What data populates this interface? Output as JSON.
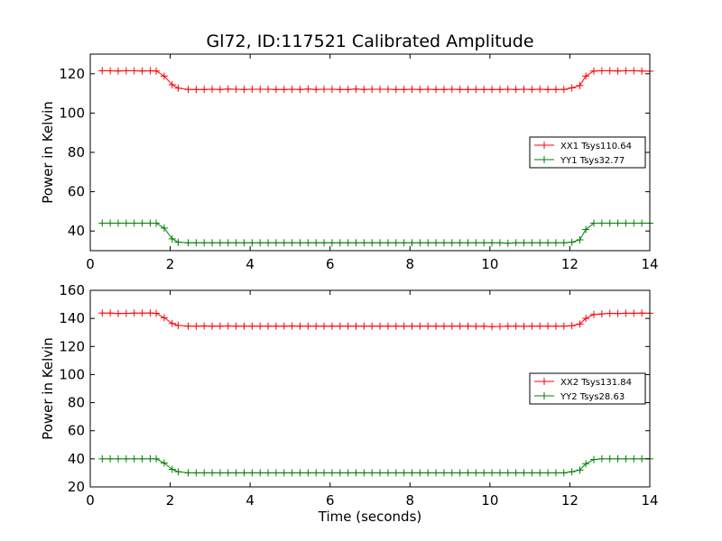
{
  "figure": {
    "title": "Gl72, ID:117521 Calibrated Amplitude"
  },
  "colors": {
    "red": "#ff0000",
    "green": "#008000",
    "axis": "#000000"
  },
  "chart_data": [
    {
      "type": "line",
      "title": "Gl72, ID:117521 Calibrated Amplitude",
      "xlabel": "",
      "ylabel": "Power in Kelvin",
      "xlim": [
        0,
        14
      ],
      "ylim": [
        30,
        130
      ],
      "xticks": [
        0,
        2,
        4,
        6,
        8,
        10,
        12,
        14
      ],
      "yticks": [
        40,
        60,
        80,
        100,
        120
      ],
      "grid": false,
      "legend_position": "right",
      "series": [
        {
          "name": "XX1 Tsys110.64",
          "color": "#ff0000",
          "x": [
            0.3,
            0.5,
            0.7,
            0.9,
            1.1,
            1.3,
            1.5,
            1.65,
            1.85,
            2.05,
            2.2,
            2.45,
            2.65,
            2.85,
            3.05,
            3.25,
            3.45,
            3.65,
            3.85,
            4.05,
            4.25,
            4.45,
            4.65,
            4.85,
            5.05,
            5.25,
            5.45,
            5.65,
            5.85,
            6.05,
            6.25,
            6.45,
            6.65,
            6.85,
            7.05,
            7.25,
            7.45,
            7.65,
            7.85,
            8.05,
            8.25,
            8.45,
            8.65,
            8.85,
            9.05,
            9.25,
            9.45,
            9.65,
            9.85,
            10.05,
            10.25,
            10.45,
            10.65,
            10.85,
            11.05,
            11.25,
            11.45,
            11.65,
            11.85,
            12.05,
            12.25,
            12.4,
            12.6,
            12.8,
            13.0,
            13.2,
            13.4,
            13.6,
            13.8,
            14.0
          ],
          "y": [
            121.5,
            121.5,
            121.4,
            121.5,
            121.5,
            121.4,
            121.5,
            121.4,
            118.8,
            114.4,
            112.7,
            112.0,
            112.0,
            112.0,
            112.1,
            112.0,
            112.2,
            112.1,
            112.0,
            112.1,
            112.1,
            112.1,
            112.0,
            112.0,
            112.1,
            112.0,
            112.2,
            112.0,
            112.1,
            112.1,
            112.0,
            112.0,
            112.2,
            112.0,
            112.1,
            112.1,
            112.1,
            112.0,
            112.0,
            112.1,
            112.0,
            112.1,
            112.0,
            112.0,
            112.1,
            112.0,
            112.0,
            112.0,
            112.0,
            112.0,
            112.0,
            112.1,
            112.0,
            112.1,
            112.0,
            112.1,
            112.0,
            112.0,
            112.0,
            112.8,
            114.0,
            118.8,
            121.4,
            121.5,
            121.5,
            121.4,
            121.5,
            121.5,
            121.4,
            121.3
          ]
        },
        {
          "name": "YY1 Tsys32.77",
          "color": "#008000",
          "x": [
            0.3,
            0.5,
            0.7,
            0.9,
            1.1,
            1.3,
            1.5,
            1.65,
            1.85,
            2.05,
            2.2,
            2.45,
            2.65,
            2.85,
            3.05,
            3.25,
            3.45,
            3.65,
            3.85,
            4.05,
            4.25,
            4.45,
            4.65,
            4.85,
            5.05,
            5.25,
            5.45,
            5.65,
            5.85,
            6.05,
            6.25,
            6.45,
            6.65,
            6.85,
            7.05,
            7.25,
            7.45,
            7.65,
            7.85,
            8.05,
            8.25,
            8.45,
            8.65,
            8.85,
            9.05,
            9.25,
            9.45,
            9.65,
            9.85,
            10.05,
            10.25,
            10.45,
            10.65,
            10.85,
            11.05,
            11.25,
            11.45,
            11.65,
            11.85,
            12.05,
            12.25,
            12.4,
            12.6,
            12.8,
            13.0,
            13.2,
            13.4,
            13.6,
            13.8,
            14.0
          ],
          "y": [
            44.0,
            44.0,
            44.0,
            44.0,
            44.0,
            44.0,
            44.0,
            44.0,
            41.5,
            36.0,
            34.3,
            34.0,
            34.0,
            34.0,
            34.0,
            34.0,
            34.0,
            34.0,
            34.0,
            34.0,
            34.0,
            34.0,
            34.0,
            34.0,
            34.0,
            34.0,
            34.0,
            34.0,
            34.0,
            34.0,
            34.0,
            34.0,
            34.0,
            34.0,
            34.0,
            34.0,
            34.0,
            34.0,
            34.0,
            34.0,
            34.0,
            34.0,
            34.0,
            34.0,
            34.0,
            34.0,
            34.0,
            34.0,
            34.0,
            34.0,
            34.0,
            33.8,
            34.0,
            34.0,
            34.0,
            34.0,
            34.0,
            34.0,
            34.0,
            34.3,
            35.5,
            40.8,
            44.0,
            44.0,
            44.0,
            44.0,
            44.0,
            44.0,
            44.0,
            44.0
          ]
        }
      ]
    },
    {
      "type": "line",
      "title": "",
      "xlabel": "Time (seconds)",
      "ylabel": "Power in Kelvin",
      "xlim": [
        0,
        14
      ],
      "ylim": [
        20,
        160
      ],
      "xticks": [
        0,
        2,
        4,
        6,
        8,
        10,
        12,
        14
      ],
      "yticks": [
        20,
        40,
        60,
        80,
        100,
        120,
        140,
        160
      ],
      "grid": false,
      "legend_position": "right",
      "series": [
        {
          "name": "XX2 Tsys131.84",
          "color": "#ff0000",
          "x": [
            0.3,
            0.5,
            0.7,
            0.9,
            1.1,
            1.3,
            1.5,
            1.65,
            1.85,
            2.05,
            2.2,
            2.45,
            2.65,
            2.85,
            3.05,
            3.25,
            3.45,
            3.65,
            3.85,
            4.05,
            4.25,
            4.45,
            4.65,
            4.85,
            5.05,
            5.25,
            5.45,
            5.65,
            5.85,
            6.05,
            6.25,
            6.45,
            6.65,
            6.85,
            7.05,
            7.25,
            7.45,
            7.65,
            7.85,
            8.05,
            8.25,
            8.45,
            8.65,
            8.85,
            9.05,
            9.25,
            9.45,
            9.65,
            9.85,
            10.05,
            10.25,
            10.45,
            10.65,
            10.85,
            11.05,
            11.25,
            11.45,
            11.65,
            11.85,
            12.05,
            12.25,
            12.4,
            12.6,
            12.8,
            13.0,
            13.2,
            13.4,
            13.6,
            13.8,
            14.0
          ],
          "y": [
            143.8,
            143.8,
            143.5,
            143.6,
            143.8,
            143.8,
            143.9,
            143.6,
            140.5,
            136.4,
            135.0,
            134.5,
            134.5,
            134.6,
            134.5,
            134.5,
            134.6,
            134.5,
            134.5,
            134.5,
            134.5,
            134.5,
            134.5,
            134.5,
            134.6,
            134.5,
            134.5,
            134.5,
            134.5,
            134.5,
            134.5,
            134.5,
            134.5,
            134.5,
            134.5,
            134.5,
            134.5,
            134.5,
            134.5,
            134.5,
            134.5,
            134.5,
            134.5,
            134.5,
            134.5,
            134.5,
            134.5,
            134.4,
            134.5,
            134.2,
            134.3,
            134.5,
            134.5,
            134.4,
            134.5,
            134.5,
            134.5,
            134.5,
            134.5,
            134.8,
            136.0,
            140.0,
            142.8,
            143.2,
            143.6,
            143.5,
            143.7,
            143.7,
            143.8,
            143.7
          ]
        },
        {
          "name": "YY2 Tsys28.63",
          "color": "#008000",
          "x": [
            0.3,
            0.5,
            0.7,
            0.9,
            1.1,
            1.3,
            1.5,
            1.65,
            1.85,
            2.05,
            2.2,
            2.45,
            2.65,
            2.85,
            3.05,
            3.25,
            3.45,
            3.65,
            3.85,
            4.05,
            4.25,
            4.45,
            4.65,
            4.85,
            5.05,
            5.25,
            5.45,
            5.65,
            5.85,
            6.05,
            6.25,
            6.45,
            6.65,
            6.85,
            7.05,
            7.25,
            7.45,
            7.65,
            7.85,
            8.05,
            8.25,
            8.45,
            8.65,
            8.85,
            9.05,
            9.25,
            9.45,
            9.65,
            9.85,
            10.05,
            10.25,
            10.45,
            10.65,
            10.85,
            11.05,
            11.25,
            11.45,
            11.65,
            11.85,
            12.05,
            12.25,
            12.4,
            12.6,
            12.8,
            13.0,
            13.2,
            13.4,
            13.6,
            13.8,
            14.0
          ],
          "y": [
            40.0,
            40.0,
            40.0,
            40.0,
            40.0,
            40.0,
            40.0,
            40.0,
            37.0,
            32.5,
            30.8,
            30.0,
            30.0,
            30.0,
            30.0,
            30.0,
            30.0,
            30.0,
            30.0,
            30.0,
            30.0,
            30.0,
            30.0,
            30.0,
            30.0,
            30.0,
            30.0,
            30.0,
            30.0,
            30.0,
            30.0,
            30.0,
            30.0,
            30.0,
            30.0,
            30.0,
            30.0,
            30.0,
            30.0,
            30.0,
            30.0,
            30.0,
            30.0,
            30.0,
            30.0,
            30.0,
            30.0,
            30.0,
            30.0,
            30.0,
            30.0,
            30.0,
            30.0,
            30.0,
            30.0,
            30.0,
            30.0,
            30.0,
            30.0,
            30.8,
            32.0,
            36.5,
            39.5,
            40.0,
            40.0,
            40.0,
            40.0,
            40.0,
            40.0,
            40.0
          ]
        }
      ]
    }
  ]
}
